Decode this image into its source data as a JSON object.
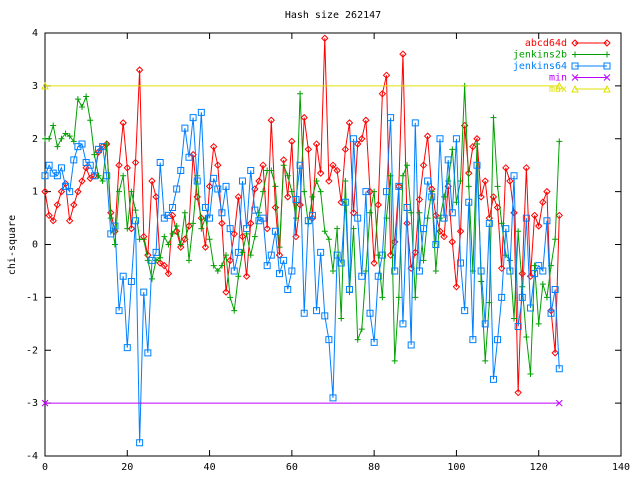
{
  "chart_data": {
    "type": "line",
    "title": "Hash size 262147",
    "ylabel": "chi-square",
    "x": [
      0,
      1,
      2,
      3,
      4,
      5,
      6,
      7,
      8,
      9,
      10,
      11,
      12,
      13,
      14,
      15,
      16,
      17,
      18,
      19,
      20,
      21,
      22,
      23,
      24,
      25,
      26,
      27,
      28,
      29,
      30,
      31,
      32,
      33,
      34,
      35,
      36,
      37,
      38,
      39,
      40,
      41,
      42,
      43,
      44,
      45,
      46,
      47,
      48,
      49,
      50,
      51,
      52,
      53,
      54,
      55,
      56,
      57,
      58,
      59,
      60,
      61,
      62,
      63,
      64,
      65,
      66,
      67,
      68,
      69,
      70,
      71,
      72,
      73,
      74,
      75,
      76,
      77,
      78,
      79,
      80,
      81,
      82,
      83,
      84,
      85,
      86,
      87,
      88,
      89,
      90,
      91,
      92,
      93,
      94,
      95,
      96,
      97,
      98,
      99,
      100,
      101,
      102,
      103,
      104,
      105,
      106,
      107,
      108,
      109,
      110,
      111,
      112,
      113,
      114,
      115,
      116,
      117,
      118,
      119,
      120,
      121,
      122,
      123,
      124,
      125
    ],
    "series": [
      {
        "name": "abcd64d",
        "color": "#ff0000",
        "marker": "diamond",
        "values": [
          1.0,
          0.55,
          0.45,
          0.75,
          1.0,
          1.15,
          0.45,
          0.75,
          1.0,
          1.2,
          1.45,
          1.25,
          1.3,
          1.75,
          1.85,
          1.9,
          0.6,
          0.25,
          1.5,
          2.3,
          1.45,
          0.3,
          1.55,
          3.3,
          0.15,
          -0.2,
          1.2,
          0.9,
          -0.35,
          -0.4,
          -0.55,
          0.55,
          0.25,
          -0.05,
          0.1,
          0.35,
          1.7,
          0.9,
          0.5,
          -0.05,
          1.1,
          1.85,
          1.5,
          0.4,
          -0.9,
          -0.3,
          0.2,
          0.9,
          0.15,
          -0.6,
          0.4,
          1.05,
          1.2,
          1.5,
          0.3,
          2.35,
          0.7,
          -0.2,
          1.6,
          0.9,
          1.95,
          0.15,
          0.75,
          2.4,
          1.8,
          0.5,
          1.9,
          1.35,
          3.9,
          1.2,
          1.5,
          1.4,
          0.8,
          1.8,
          2.3,
          0.6,
          1.9,
          2.0,
          2.35,
          1.0,
          -0.35,
          0.75,
          2.85,
          3.2,
          -0.2,
          0.05,
          1.1,
          3.6,
          0.4,
          -0.45,
          -0.15,
          0.85,
          1.5,
          2.05,
          1.05,
          0.55,
          0.25,
          0.15,
          1.1,
          0.05,
          -0.8,
          0.25,
          2.25,
          1.35,
          1.85,
          2.0,
          0.9,
          1.2,
          0.5,
          0.9,
          0.7,
          -0.45,
          1.45,
          1.2,
          0.6,
          -2.8,
          -0.55,
          1.45,
          -0.6,
          0.55,
          0.35,
          0.8,
          1.0,
          -1.25,
          -2.05,
          0.55
        ]
      },
      {
        "name": "jenkins2b",
        "color": "#00a000",
        "marker": "plus",
        "values": [
          2.0,
          2.0,
          2.25,
          1.85,
          2.0,
          2.1,
          2.05,
          1.95,
          2.75,
          2.6,
          2.8,
          2.35,
          1.7,
          1.3,
          1.2,
          1.9,
          0.5,
          0.0,
          1.0,
          1.3,
          0.3,
          1.0,
          0.65,
          0.1,
          0.1,
          -0.3,
          -0.65,
          -0.3,
          -0.25,
          0.15,
          0.0,
          0.2,
          0.35,
          0.0,
          0.6,
          -0.3,
          0.4,
          1.3,
          0.3,
          0.5,
          0.1,
          -0.4,
          -0.5,
          -0.4,
          -0.2,
          -1.0,
          -1.25,
          -0.6,
          -0.15,
          0.2,
          -0.2,
          0.15,
          0.6,
          1.0,
          1.4,
          1.4,
          1.1,
          -0.05,
          1.5,
          1.3,
          1.0,
          0.5,
          2.85,
          1.0,
          0.4,
          0.9,
          1.2,
          1.0,
          0.25,
          0.1,
          -0.5,
          0.3,
          -1.4,
          1.2,
          -0.9,
          0.3,
          -1.8,
          -1.6,
          -0.5,
          0.6,
          1.0,
          -0.2,
          -1.0,
          0.5,
          1.3,
          -2.2,
          -1.0,
          1.3,
          1.5,
          0.6,
          -1.0,
          0.6,
          -0.3,
          0.5,
          1.0,
          -0.5,
          0.5,
          0.9,
          1.2,
          1.8,
          0.8,
          1.2,
          3.0,
          1.1,
          -0.5,
          1.9,
          -0.7,
          -2.2,
          -1.1,
          2.4,
          1.1,
          0.4,
          -0.2,
          -0.3,
          -1.4,
          0.25,
          -0.8,
          -1.75,
          -2.45,
          -0.4,
          -1.5,
          -0.75,
          -1.0,
          -0.4,
          0.1,
          1.95
        ]
      },
      {
        "name": "jenkins64",
        "color": "#0080ff",
        "marker": "square",
        "values": [
          1.3,
          1.5,
          1.35,
          1.3,
          1.45,
          1.1,
          1.0,
          1.6,
          1.85,
          1.9,
          1.55,
          1.5,
          1.3,
          1.8,
          1.85,
          1.3,
          0.2,
          0.35,
          -1.25,
          -0.6,
          -1.95,
          -0.7,
          0.45,
          -3.75,
          -0.9,
          -2.05,
          -0.3,
          -0.15,
          1.55,
          0.5,
          0.55,
          0.7,
          1.05,
          1.4,
          2.2,
          1.65,
          2.4,
          1.2,
          2.5,
          0.7,
          0.5,
          1.25,
          1.05,
          0.6,
          1.1,
          0.3,
          -0.5,
          -0.15,
          1.2,
          0.3,
          1.4,
          0.65,
          0.45,
          0.5,
          -0.4,
          -0.2,
          0.25,
          -0.55,
          -0.3,
          -0.85,
          -0.5,
          0.85,
          1.5,
          -1.3,
          0.45,
          0.55,
          -1.25,
          -0.15,
          -1.35,
          -1.8,
          -2.9,
          -0.2,
          -0.35,
          0.8,
          -0.85,
          2.0,
          0.5,
          -0.6,
          1.0,
          -1.3,
          -1.85,
          -0.6,
          -0.2,
          1.0,
          2.4,
          -0.5,
          1.1,
          -1.5,
          0.7,
          -1.9,
          2.3,
          -0.5,
          0.3,
          1.2,
          0.9,
          0.0,
          2.0,
          0.5,
          1.6,
          0.6,
          2.0,
          -0.35,
          -1.25,
          0.8,
          -1.8,
          1.5,
          -0.5,
          -1.5,
          0.4,
          -2.55,
          -1.8,
          -1.0,
          0.3,
          -0.5,
          1.3,
          -1.55,
          -1.0,
          0.5,
          -1.2,
          -0.55,
          -0.4,
          -0.5,
          0.45,
          -1.3,
          -0.85,
          -2.35
        ]
      },
      {
        "name": "min",
        "color": "#c000ff",
        "marker": "cross",
        "x": [
          0,
          125
        ],
        "values": [
          -3,
          -3
        ]
      },
      {
        "name": "max",
        "color": "#e0e000",
        "marker": "triangle",
        "x": [
          0,
          125
        ],
        "values": [
          3,
          3
        ]
      }
    ],
    "xlim": [
      0,
      140
    ],
    "xticks": [
      0,
      20,
      40,
      60,
      80,
      100,
      120,
      140
    ],
    "ylim": [
      -4,
      4
    ],
    "yticks": [
      -4,
      -3,
      -2,
      -1,
      0,
      1,
      2,
      3,
      4
    ],
    "legend": "top-right"
  }
}
